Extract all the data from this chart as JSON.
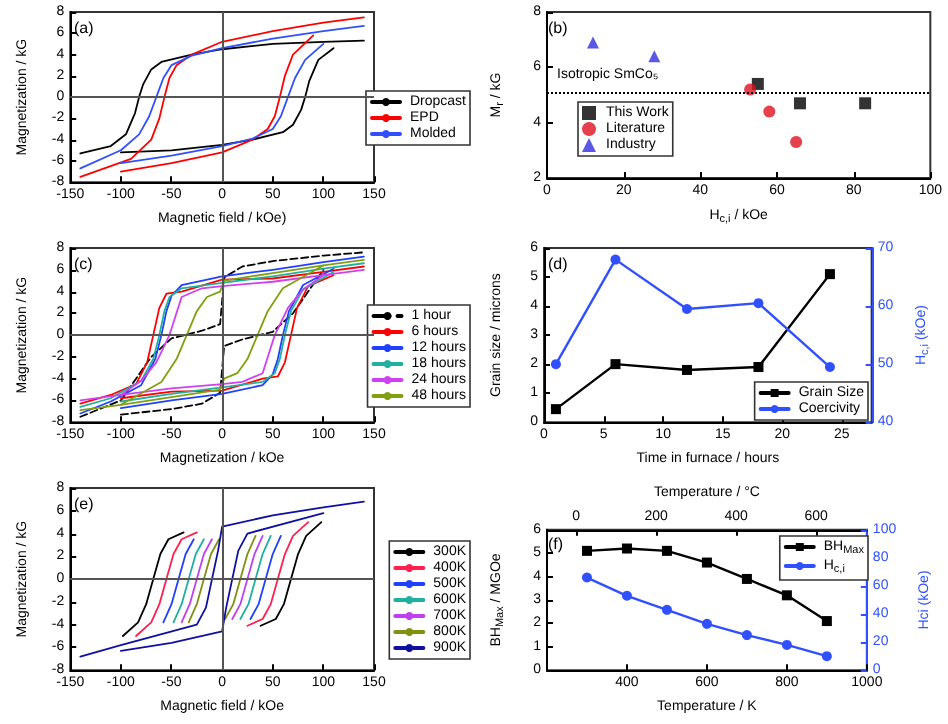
{
  "chart_data": [
    {
      "type": "line",
      "xlabel": "Magnetic field / kOe)",
      "ylabel": "Magnetization / kG",
      "xlim": [
        -150,
        150
      ],
      "xticks": [
        -150,
        -100,
        -50,
        0,
        50,
        100,
        150
      ],
      "ylim": [
        -8,
        8
      ],
      "yticks": [
        -8,
        -6,
        -4,
        -2,
        0,
        2,
        4,
        6,
        8
      ],
      "legend": "right",
      "marker": "none",
      "annotations": [
        "(a)"
      ],
      "ref_lines": [
        {
          "axis": "x",
          "value": 0,
          "color": "#555555"
        },
        {
          "axis": "y",
          "value": 0,
          "color": "#555555"
        }
      ],
      "series": [
        {
          "name": "Dropcast",
          "color": "#000000",
          "x": [
            -140,
            -110,
            -95,
            -86,
            -82,
            -78,
            -70,
            -60,
            -30,
            0,
            50,
            100,
            140
          ],
          "values": [
            -5.3,
            -4.6,
            -3.5,
            -1.5,
            0,
            1.2,
            2.6,
            3.3,
            4.0,
            4.5,
            5.0,
            5.2,
            5.3
          ]
        },
        {
          "color": "#000000",
          "x": [
            -100,
            -50,
            0,
            30,
            60,
            70,
            78,
            82,
            86,
            95,
            110
          ],
          "values": [
            -5.2,
            -5.0,
            -4.5,
            -4.0,
            -3.3,
            -2.6,
            -1.2,
            0,
            1.5,
            3.5,
            4.6
          ]
        },
        {
          "name": "EPD",
          "color": "#ff0000",
          "x": [
            -140,
            -90,
            -70,
            -62,
            -57,
            -52,
            -45,
            -30,
            0,
            50,
            100,
            140
          ],
          "values": [
            -7.5,
            -5.8,
            -4,
            -2,
            0,
            1.8,
            3.0,
            4.0,
            5.2,
            6.2,
            7.0,
            7.5
          ]
        },
        {
          "color": "#ff0000",
          "x": [
            -100,
            -50,
            0,
            30,
            45,
            52,
            57,
            62,
            70,
            90
          ],
          "values": [
            -7.0,
            -6.2,
            -5.2,
            -4.0,
            -3.0,
            -1.8,
            0,
            2,
            4,
            5.8
          ]
        },
        {
          "name": "Molded",
          "color": "#3050ff",
          "x": [
            -140,
            -100,
            -82,
            -72,
            -65,
            -58,
            -50,
            -30,
            0,
            50,
            100,
            140
          ],
          "values": [
            -6.7,
            -5.0,
            -3.5,
            -1.8,
            0,
            1.8,
            3.0,
            3.9,
            4.6,
            5.5,
            6.2,
            6.7
          ]
        },
        {
          "color": "#3050ff",
          "x": [
            -100,
            -50,
            0,
            30,
            50,
            58,
            65,
            72,
            82,
            100
          ],
          "values": [
            -6.2,
            -5.5,
            -4.6,
            -3.9,
            -3.0,
            -1.8,
            0,
            1.8,
            3.5,
            5.0
          ]
        }
      ]
    },
    {
      "type": "scatter",
      "xlabel": "H$_{c,i}$ / kOe",
      "ylabel": "M$_{r}$ / kG",
      "xlim": [
        0,
        100
      ],
      "xticks": [
        0,
        20,
        40,
        60,
        80,
        100
      ],
      "ylim": [
        2,
        8
      ],
      "yticks": [
        2,
        4,
        6,
        8
      ],
      "legend": "bottom left",
      "annotations": [
        "(b)"
      ],
      "ref_lines": [
        {
          "axis": "y",
          "value": 5.1,
          "label": "Isotropic SmCo₅",
          "color": "#000000",
          "line_style": "dotted"
        }
      ],
      "series": [
        {
          "name": "This Work",
          "color": "#000000",
          "marker": "square",
          "x": [
            55,
            66,
            83
          ],
          "values": [
            5.4,
            4.7,
            4.7
          ]
        },
        {
          "name": "Literature",
          "color": "#e01020",
          "marker": "circle",
          "x": [
            53,
            58,
            65
          ],
          "values": [
            5.2,
            4.4,
            3.3
          ]
        },
        {
          "name": "Industry",
          "color": "#3030e0",
          "marker": "triangle",
          "x": [
            12,
            28
          ],
          "values": [
            6.9,
            6.4
          ]
        }
      ]
    },
    {
      "type": "line",
      "xlabel": "Magnetization / kOe",
      "ylabel": "Magnetization / kG",
      "xlim": [
        -150,
        150
      ],
      "xticks": [
        -150,
        -100,
        -50,
        0,
        50,
        100,
        150
      ],
      "ylim": [
        -8,
        8
      ],
      "yticks": [
        -8,
        -6,
        -4,
        -2,
        0,
        2,
        4,
        6,
        8
      ],
      "legend": "right",
      "marker": "none",
      "annotations": [
        "(c)"
      ],
      "ref_lines": [
        {
          "axis": "x",
          "value": 0,
          "color": "#555555"
        },
        {
          "axis": "y",
          "value": 0,
          "color": "#555555"
        }
      ],
      "series": [
        {
          "name": "1 hour",
          "color": "#000000",
          "line_style": "dashed",
          "x": [
            -140,
            -100,
            -85,
            -70,
            -50,
            -20,
            -2,
            2,
            20,
            50,
            100,
            140
          ],
          "values": [
            -7.5,
            -6,
            -4,
            -2,
            -0.3,
            0.4,
            1.0,
            5.3,
            6.3,
            6.8,
            7.3,
            7.6
          ]
        },
        {
          "color": "#000000",
          "line_style": "dashed",
          "x": [
            -100,
            -50,
            -20,
            -2,
            2,
            20,
            50,
            70,
            85,
            100
          ],
          "values": [
            -7.3,
            -6.8,
            -6.3,
            -5.3,
            -1.0,
            -0.4,
            0.3,
            2,
            4,
            6
          ]
        },
        {
          "name": "6 hours",
          "color": "#ff0000",
          "x": [
            -140,
            -110,
            -85,
            -74,
            -68,
            -62,
            -55,
            -40,
            0,
            50,
            100,
            140
          ],
          "values": [
            -6.3,
            -5.5,
            -4.5,
            -2.5,
            0,
            2.5,
            3.8,
            4.0,
            5.1,
            5.2,
            5.8,
            6.3
          ]
        },
        {
          "color": "#ff0000",
          "x": [
            -100,
            -50,
            0,
            40,
            55,
            62,
            68,
            74,
            85,
            110
          ],
          "values": [
            -5.8,
            -5.2,
            -5.1,
            -4.0,
            -3.8,
            -2.5,
            0,
            2.5,
            4.5,
            5.5
          ]
        },
        {
          "name": "12 hours",
          "color": "#2040ff",
          "x": [
            -140,
            -110,
            -80,
            -66,
            -60,
            -55,
            -50,
            -40,
            0,
            50,
            100,
            140
          ],
          "values": [
            -7.2,
            -6.1,
            -4.6,
            -2.2,
            0,
            2.2,
            3.6,
            4.6,
            5.4,
            6.0,
            6.7,
            7.2
          ]
        },
        {
          "color": "#2040ff",
          "x": [
            -100,
            -50,
            0,
            40,
            50,
            55,
            60,
            66,
            80,
            110
          ],
          "values": [
            -6.7,
            -6.0,
            -5.4,
            -4.6,
            -3.6,
            -2.2,
            0,
            2.2,
            4.6,
            6.1
          ]
        },
        {
          "name": "18 hours",
          "color": "#20b0a0",
          "x": [
            -140,
            -110,
            -80,
            -68,
            -62,
            -57,
            -52,
            -40,
            0,
            50,
            100,
            140
          ],
          "values": [
            -6.6,
            -5.8,
            -4.2,
            -2.2,
            0,
            2.2,
            3.5,
            4.3,
            4.8,
            5.4,
            6.1,
            6.6
          ]
        },
        {
          "color": "#20b0a0",
          "x": [
            -100,
            -50,
            0,
            40,
            52,
            57,
            62,
            68,
            80,
            110
          ],
          "values": [
            -6.1,
            -5.4,
            -4.8,
            -4.3,
            -3.5,
            -2.2,
            0,
            2.2,
            4.2,
            5.8
          ]
        },
        {
          "name": "24 hours",
          "color": "#d040f0",
          "x": [
            -140,
            -100,
            -80,
            -65,
            -52,
            -40,
            -20,
            0,
            50,
            100,
            140
          ],
          "values": [
            -6.0,
            -5.5,
            -4.2,
            -2.5,
            0,
            3.5,
            4.3,
            4.5,
            4.9,
            5.5,
            6.0
          ]
        },
        {
          "color": "#d040f0",
          "x": [
            -100,
            -50,
            0,
            20,
            40,
            52,
            65,
            80,
            100
          ],
          "values": [
            -5.5,
            -4.9,
            -4.5,
            -4.3,
            -3.5,
            0,
            2.5,
            4.2,
            5.5
          ]
        },
        {
          "name": "48 hours",
          "color": "#80a010",
          "x": [
            -140,
            -100,
            -60,
            -45,
            -35,
            -25,
            -15,
            -2,
            2,
            50,
            100,
            140
          ],
          "values": [
            -6.9,
            -6.4,
            -4.3,
            -2.2,
            0,
            2.2,
            3.5,
            4.0,
            5.0,
            5.7,
            6.4,
            6.9
          ]
        },
        {
          "color": "#80a010",
          "x": [
            -100,
            -50,
            -2,
            2,
            15,
            25,
            35,
            45,
            60,
            100
          ],
          "values": [
            -6.4,
            -5.7,
            -5.0,
            -4.0,
            -3.5,
            -2.2,
            0,
            2.2,
            4.3,
            6.4
          ]
        }
      ]
    },
    {
      "type": "line",
      "xlabel": "Time in furnace / hours",
      "ylabel": "Grain size / microns",
      "y2label": "H$_{c,i}$ (kOe)",
      "xlim": [
        0,
        27.5
      ],
      "xticks": [
        0,
        5,
        10,
        15,
        20,
        25
      ],
      "ylim": [
        0,
        6
      ],
      "yticks": [
        0,
        1,
        2,
        3,
        4,
        5,
        6
      ],
      "y2lim": [
        40,
        70
      ],
      "y2ticks": [
        40,
        50,
        60,
        70
      ],
      "legend": "bottom right",
      "annotations": [
        "(d)"
      ],
      "x": [
        1,
        6,
        12,
        18,
        24
      ],
      "series": [
        {
          "name": "Grain Size",
          "color": "#000000",
          "marker": "square",
          "values": [
            0.45,
            2.0,
            1.8,
            1.9,
            5.1
          ]
        },
        {
          "name": "Coercivity",
          "color": "#3050ff",
          "marker": "circle",
          "axis": "y2",
          "values": [
            50,
            68,
            59.5,
            60.5,
            49.5
          ]
        }
      ]
    },
    {
      "type": "line",
      "xlabel": "Magnetic field / kOe",
      "ylabel": "Magnetization / kG",
      "xlim": [
        -150,
        150
      ],
      "xticks": [
        -150,
        -100,
        -50,
        0,
        50,
        100,
        150
      ],
      "ylim": [
        -8,
        8
      ],
      "yticks": [
        -8,
        -6,
        -4,
        -2,
        0,
        2,
        4,
        6,
        8
      ],
      "legend": "right",
      "marker": "none",
      "annotations": [
        "(e)"
      ],
      "ref_lines": [
        {
          "axis": "x",
          "value": 0,
          "color": "#555555"
        },
        {
          "axis": "y",
          "value": 0,
          "color": "#555555"
        }
      ],
      "series": [
        {
          "name": "300K",
          "color": "#000000",
          "x": [
            -98,
            -83,
            -75,
            -68,
            -61,
            -53,
            -38
          ],
          "values": [
            -5.0,
            -3.8,
            -2.2,
            0,
            2.2,
            3.5,
            4.1
          ]
        },
        {
          "color": "#000000",
          "x": [
            38,
            53,
            61,
            68,
            75,
            83,
            98
          ],
          "values": [
            -4.1,
            -3.5,
            -2.2,
            0,
            2.2,
            3.8,
            5.0
          ]
        },
        {
          "name": "400K",
          "color": "#ff2050",
          "x": [
            -85,
            -70,
            -62,
            -55,
            -48,
            -40,
            -25
          ],
          "values": [
            -5.0,
            -3.8,
            -2.2,
            0,
            2.2,
            3.5,
            4.1
          ]
        },
        {
          "color": "#ff2050",
          "x": [
            25,
            40,
            48,
            55,
            62,
            70,
            85
          ],
          "values": [
            -4.1,
            -3.5,
            -2.2,
            0,
            2.2,
            3.8,
            5.0
          ]
        },
        {
          "name": "500K",
          "color": "#2040ff",
          "x": [
            -58,
            -50,
            -43,
            -36,
            -28
          ],
          "values": [
            -3.8,
            -2.2,
            0,
            2.2,
            3.5
          ]
        },
        {
          "color": "#2040ff",
          "x": [
            28,
            36,
            43,
            50,
            58
          ],
          "values": [
            -3.5,
            -2.2,
            0,
            2.2,
            3.8
          ]
        },
        {
          "name": "600K",
          "color": "#20b0a0",
          "x": [
            -48,
            -40,
            -33,
            -26,
            -18
          ],
          "values": [
            -3.8,
            -2.2,
            0,
            2.2,
            3.5
          ]
        },
        {
          "color": "#20b0a0",
          "x": [
            18,
            26,
            33,
            40,
            48
          ],
          "values": [
            -3.5,
            -2.2,
            0,
            2.2,
            3.8
          ]
        },
        {
          "name": "700K",
          "color": "#c040f0",
          "x": [
            -40,
            -32,
            -25,
            -18,
            -10
          ],
          "values": [
            -3.8,
            -2.2,
            0,
            2.2,
            3.5
          ]
        },
        {
          "color": "#c040f0",
          "x": [
            10,
            18,
            25,
            32,
            40
          ],
          "values": [
            -3.5,
            -2.2,
            0,
            2.2,
            3.8
          ]
        },
        {
          "name": "800K",
          "color": "#809010",
          "x": [
            -33,
            -25,
            -18,
            -11,
            -3
          ],
          "values": [
            -3.8,
            -2.2,
            0,
            2.2,
            3.5
          ]
        },
        {
          "color": "#809010",
          "x": [
            3,
            11,
            18,
            25,
            33
          ],
          "values": [
            -3.5,
            -2.2,
            0,
            2.2,
            3.8
          ]
        },
        {
          "name": "900K",
          "color": "#1010a0",
          "x": [
            -140,
            -100,
            -25,
            -16,
            -10,
            -4,
            0,
            50,
            100,
            140
          ],
          "values": [
            -6.8,
            -5.8,
            -4.0,
            -2.5,
            0,
            2.5,
            4.6,
            5.6,
            6.3,
            6.8
          ]
        },
        {
          "color": "#1010a0",
          "x": [
            -100,
            -50,
            0,
            4,
            10,
            16,
            25,
            100
          ],
          "values": [
            -6.3,
            -5.6,
            -4.6,
            -2.5,
            0,
            2.5,
            4.0,
            5.8
          ]
        }
      ]
    },
    {
      "type": "line",
      "xlabel": "Temperature / K",
      "x2label": "Temperature / °C",
      "ylabel": "BH$_{Max}$ / MGOe",
      "y2label": "Hci (kOe)",
      "xlim": [
        200,
        1000
      ],
      "xticks": [
        400,
        600,
        800,
        1000
      ],
      "x2lim": [
        -73,
        727
      ],
      "x2ticks": [
        0,
        200,
        400,
        600
      ],
      "ylim": [
        0,
        6
      ],
      "yticks": [
        0,
        1,
        2,
        3,
        4,
        5,
        6
      ],
      "y2lim": [
        0,
        100
      ],
      "y2ticks": [
        0,
        20,
        40,
        60,
        80,
        100
      ],
      "legend": "top right",
      "annotations": [
        "(f)"
      ],
      "x": [
        300,
        400,
        500,
        600,
        700,
        800,
        900
      ],
      "series": [
        {
          "name": "BH$_{Max}$",
          "color": "#000000",
          "marker": "square",
          "values": [
            5.1,
            5.2,
            5.1,
            4.6,
            3.9,
            3.2,
            2.1
          ]
        },
        {
          "name": "H$_{c,i}$",
          "color": "#3050ff",
          "marker": "circle",
          "axis": "y2",
          "values": [
            66,
            53,
            43,
            33,
            25,
            18,
            10
          ]
        }
      ]
    }
  ]
}
